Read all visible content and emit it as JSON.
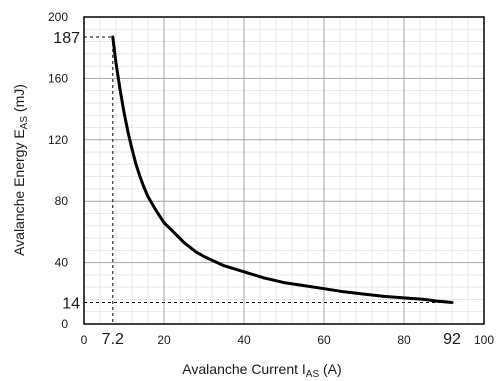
{
  "chart_data": {
    "type": "line",
    "xlabel_main": "Avalanche Current  I",
    "xlabel_sub": "AS",
    "xlabel_unit": " (A)",
    "ylabel_main": "Avalanche Energy E",
    "ylabel_sub": "AS",
    "ylabel_unit": "  (mJ)",
    "xlim": [
      0,
      100
    ],
    "ylim": [
      0,
      200
    ],
    "x_ticks": [
      0,
      20,
      40,
      60,
      80,
      100
    ],
    "y_ticks": [
      0,
      40,
      80,
      120,
      160,
      200
    ],
    "grid": true,
    "minor_grid": true,
    "series": [
      {
        "x": [
          7.2,
          8,
          9,
          10,
          11,
          12,
          13,
          14,
          15,
          16,
          18,
          20,
          22,
          25,
          28,
          30,
          35,
          40,
          45,
          50,
          55,
          60,
          65,
          70,
          75,
          80,
          85,
          88,
          92
        ],
        "y": [
          187,
          170,
          153,
          138,
          125,
          114,
          104,
          96,
          89,
          83,
          74,
          66,
          61,
          53,
          47,
          44,
          38,
          34,
          30,
          27,
          25,
          23,
          21,
          19.5,
          18,
          17,
          16,
          15,
          14
        ]
      }
    ],
    "annotations": [
      {
        "axis": "x",
        "value": 7.2,
        "label": "7.2"
      },
      {
        "axis": "x",
        "value": 92,
        "label": "92"
      },
      {
        "axis": "y",
        "value": 187,
        "label": "187"
      },
      {
        "axis": "y",
        "value": 14,
        "label": "14"
      }
    ],
    "colors": {
      "curve": "#000000",
      "major_grid": "#a6a6a6",
      "minor_grid": "#e3e3e3",
      "frame": "#000000"
    }
  }
}
